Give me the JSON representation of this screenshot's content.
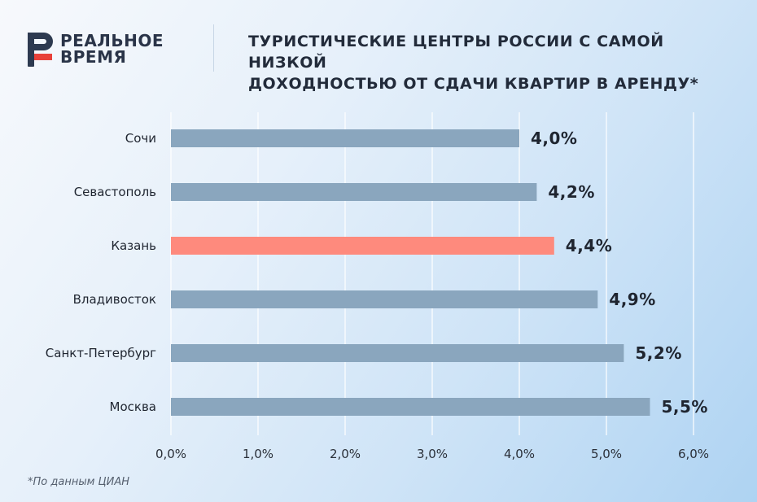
{
  "brand": {
    "line1": "РЕАЛЬНОЕ",
    "line2": "ВРЕМЯ",
    "mark_color": "#2d3a50",
    "accent_color": "#e8413a"
  },
  "title_lines": [
    "ТУРИСТИЧЕСКИЕ ЦЕНТРЫ РОССИИ С САМОЙ НИЗКОЙ",
    "ДОХОДНОСТЬЮ ОТ СДАЧИ КВАРТИР В АРЕНДУ*"
  ],
  "footnote": "*По данным ЦИАН",
  "chart_data": {
    "type": "bar",
    "orientation": "horizontal",
    "categories": [
      "Сочи",
      "Севастополь",
      "Казань",
      "Владивосток",
      "Санкт-Петербург",
      "Москва"
    ],
    "values": [
      4.0,
      4.2,
      4.4,
      4.9,
      5.2,
      5.5
    ],
    "data_labels": [
      "4,0%",
      "4,2%",
      "4,4%",
      "4,9%",
      "5,2%",
      "5,5%"
    ],
    "highlight_category": "Казань",
    "bar_color": "#8aa6be",
    "highlight_color": "#fe8a7d",
    "xlim": [
      0,
      6
    ],
    "x_ticks": [
      0,
      1,
      2,
      3,
      4,
      5,
      6
    ],
    "x_tick_labels": [
      "0,0%",
      "1,0%",
      "2,0%",
      "3,0%",
      "4,0%",
      "5,0%",
      "6,0%"
    ],
    "grid": "vertical",
    "legend": "none"
  }
}
